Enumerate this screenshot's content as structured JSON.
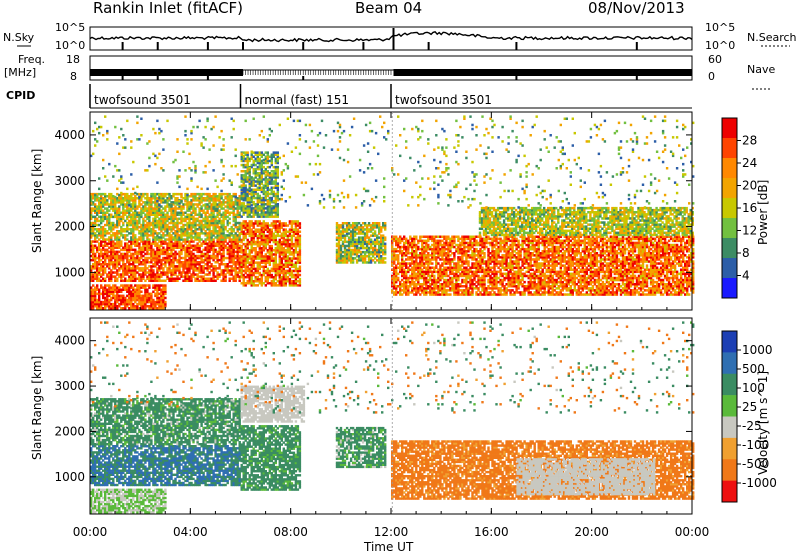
{
  "header": {
    "title": "Rankin Inlet (fitACF)",
    "beam": "Beam 04",
    "date": "08/Nov/2013"
  },
  "noise_panel": {
    "left_label": "N.Sky",
    "right_label": "N.Search",
    "left_ticks": [
      "10^5",
      "10^0"
    ],
    "right_ticks": [
      "10^5",
      "10^0"
    ]
  },
  "freq_panel": {
    "left_label_line1": "Freq.",
    "left_label_line2": "[MHz]",
    "right_label": "Nave",
    "left_ticks": [
      "18",
      "8"
    ],
    "right_ticks": [
      "60",
      "0"
    ]
  },
  "cpid_panel": {
    "label": "CPID",
    "segments": [
      {
        "name": "twofsound 3501",
        "start_hour": 0,
        "end_hour": 6
      },
      {
        "name": "normal (fast) 151",
        "start_hour": 6,
        "end_hour": 12
      },
      {
        "name": "twofsound 3501",
        "start_hour": 12,
        "end_hour": 24
      }
    ]
  },
  "x_axis": {
    "label": "Time UT",
    "range_hours": [
      0,
      24
    ],
    "ticks": [
      "00:00",
      "04:00",
      "08:00",
      "12:00",
      "16:00",
      "20:00",
      "00:00"
    ]
  },
  "power_colorbar": {
    "title": "Power [dB]",
    "ticks": [
      "28",
      "24",
      "20",
      "16",
      "12",
      "8",
      "4"
    ],
    "colors": [
      "#ee0000",
      "#ff4400",
      "#ff8800",
      "#f2a400",
      "#c8c800",
      "#72c040",
      "#3c8c64",
      "#2c5ea8",
      "#1a1aff"
    ]
  },
  "velocity_colorbar": {
    "title": "Velocity [m s^-1]",
    "ticks": [
      "1000",
      "500",
      "100",
      "25",
      "-25",
      "-100",
      "-500",
      "-1000"
    ],
    "colors": [
      "#1c3fb4",
      "#2f6fb2",
      "#3a8c62",
      "#5aba3a",
      "#c8c8c0",
      "#f0a030",
      "#f07818",
      "#ee1010"
    ],
    "ground_scatter_color": "#c8c8c0"
  },
  "chart_data": [
    {
      "type": "heatmap",
      "title": "",
      "xlabel": "Time UT",
      "ylabel": "Slant Range [km]",
      "xlim": [
        0,
        24
      ],
      "ylim": [
        180,
        4500
      ],
      "y_ticks": [
        1000,
        2000,
        3000,
        4000
      ],
      "colorbar_label": "Power [dB]",
      "color_range": [
        0,
        30
      ],
      "echo_regions": [
        {
          "t_start": 0.0,
          "t_end": 6.0,
          "r_min": 800,
          "r_max": 1700,
          "value_range": [
            18,
            30
          ]
        },
        {
          "t_start": 0.0,
          "t_end": 6.0,
          "r_min": 1700,
          "r_max": 2700,
          "value_range": [
            8,
            22
          ]
        },
        {
          "t_start": 0.0,
          "t_end": 3.0,
          "r_min": 200,
          "r_max": 700,
          "value_range": [
            20,
            30
          ]
        },
        {
          "t_start": 6.0,
          "t_end": 8.4,
          "r_min": 700,
          "r_max": 2100,
          "value_range": [
            14,
            30
          ]
        },
        {
          "t_start": 6.0,
          "t_end": 7.5,
          "r_min": 2200,
          "r_max": 3600,
          "value_range": [
            4,
            18
          ]
        },
        {
          "t_start": 9.8,
          "t_end": 11.8,
          "r_min": 1200,
          "r_max": 2100,
          "value_range": [
            6,
            22
          ]
        },
        {
          "t_start": 12.0,
          "t_end": 24.0,
          "r_min": 500,
          "r_max": 1800,
          "value_range": [
            16,
            30
          ]
        },
        {
          "t_start": 15.5,
          "t_end": 24.0,
          "r_min": 1800,
          "r_max": 2400,
          "value_range": [
            8,
            20
          ]
        },
        {
          "t_start": 0.0,
          "t_end": 24.0,
          "r_min": 2400,
          "r_max": 4400,
          "value_range": [
            4,
            20
          ],
          "sparse": true
        }
      ]
    },
    {
      "type": "heatmap",
      "title": "",
      "xlabel": "Time UT",
      "ylabel": "Slant Range [km]",
      "xlim": [
        0,
        24
      ],
      "ylim": [
        180,
        4500
      ],
      "y_ticks": [
        1000,
        2000,
        3000,
        4000
      ],
      "colorbar_label": "Velocity [m s^-1]",
      "color_range": [
        -1000,
        1000
      ],
      "echo_regions": [
        {
          "t_start": 0.0,
          "t_end": 6.0,
          "r_min": 800,
          "r_max": 1700,
          "value_range": [
            100,
            1000
          ]
        },
        {
          "t_start": 0.0,
          "t_end": 6.0,
          "r_min": 1700,
          "r_max": 2700,
          "value_range": [
            -25,
            500
          ]
        },
        {
          "t_start": 0.0,
          "t_end": 3.0,
          "r_min": 200,
          "r_max": 700,
          "value_range": [
            -25,
            100
          ]
        },
        {
          "t_start": 6.0,
          "t_end": 8.4,
          "r_min": 700,
          "r_max": 2100,
          "value_range": [
            25,
            500
          ]
        },
        {
          "t_start": 6.0,
          "t_end": 8.5,
          "r_min": 2200,
          "r_max": 3000,
          "value_range": [
            -25,
            25
          ],
          "ground_scatter": true
        },
        {
          "t_start": 9.8,
          "t_end": 11.8,
          "r_min": 1200,
          "r_max": 2100,
          "value_range": [
            -25,
            500
          ]
        },
        {
          "t_start": 12.0,
          "t_end": 24.0,
          "r_min": 500,
          "r_max": 1800,
          "value_range": [
            -500,
            -25
          ]
        },
        {
          "t_start": 17.0,
          "t_end": 22.5,
          "r_min": 600,
          "r_max": 1400,
          "value_range": [
            -25,
            25
          ],
          "ground_scatter": true
        },
        {
          "t_start": 0.0,
          "t_end": 24.0,
          "r_min": 2400,
          "r_max": 4400,
          "value_range": [
            -500,
            500
          ],
          "sparse": true
        }
      ]
    }
  ]
}
